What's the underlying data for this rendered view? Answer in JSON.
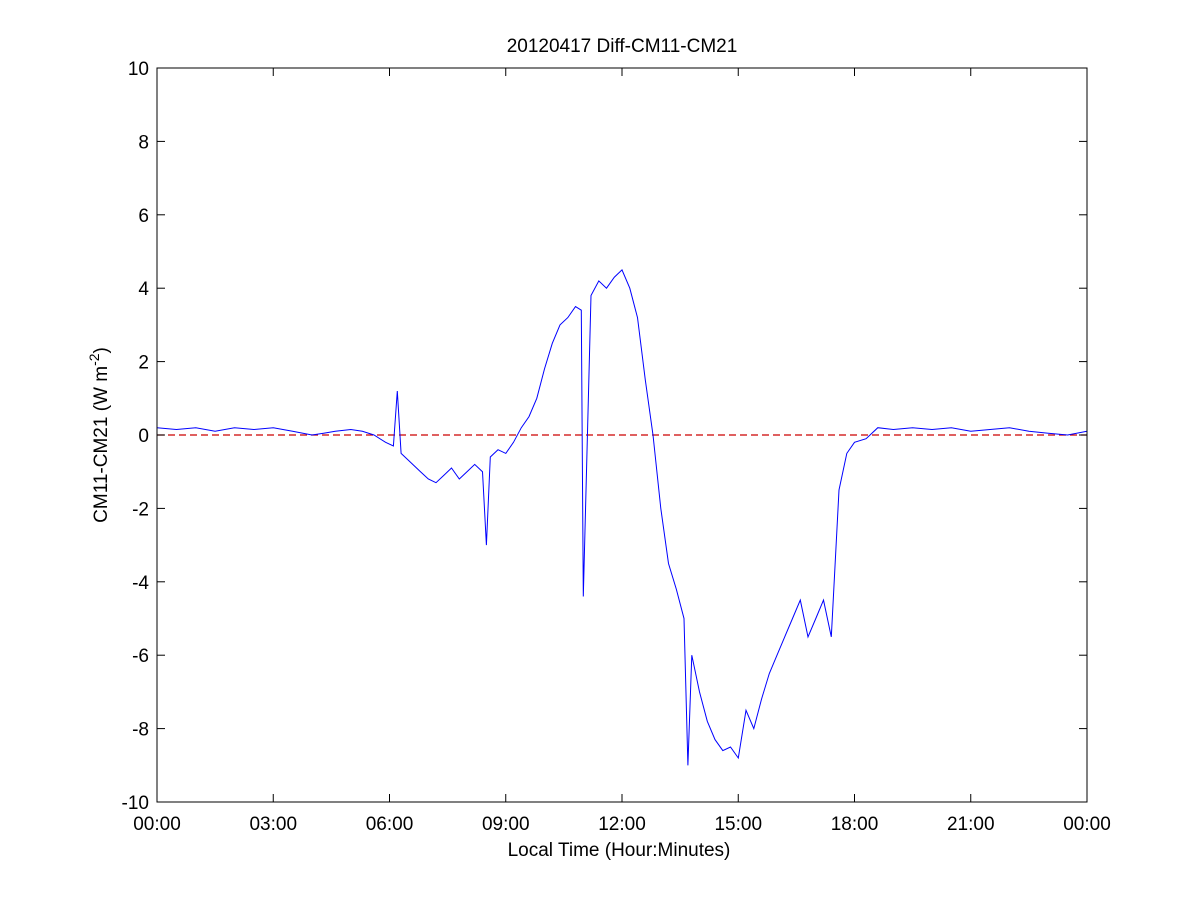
{
  "chart_data": {
    "type": "line",
    "title": "20120417 Diff-CM11-CM21",
    "xlabel": "Local Time (Hour:Minutes)",
    "ylabel": {
      "main": "CM11-CM21 (W m",
      "superscript": "-2",
      "close": ")"
    },
    "xlim": [
      0,
      24
    ],
    "ylim": [
      -10,
      10
    ],
    "x_ticks": [
      0,
      3,
      6,
      9,
      12,
      15,
      18,
      21,
      24
    ],
    "x_tick_labels": [
      "00:00",
      "03:00",
      "06:00",
      "09:00",
      "12:00",
      "15:00",
      "18:00",
      "21:00",
      "00:00"
    ],
    "y_ticks": [
      -10,
      -8,
      -6,
      -4,
      -2,
      0,
      2,
      4,
      6,
      8,
      10
    ],
    "y_tick_labels": [
      "-10",
      "-8",
      "-6",
      "-4",
      "-2",
      "0",
      "2",
      "4",
      "6",
      "8",
      "10"
    ],
    "grid": false,
    "colors": {
      "series": "#0000ff",
      "reference": "#cc0000",
      "axes": "#000000"
    },
    "reference_line": {
      "y": 0,
      "style": "dashed"
    },
    "series": [
      {
        "x": [
          0.0,
          0.5,
          1.0,
          1.5,
          2.0,
          2.5,
          3.0,
          3.5,
          4.0,
          4.3,
          4.6,
          5.0,
          5.3,
          5.6,
          5.9,
          6.1,
          6.2,
          6.3,
          6.5,
          6.8,
          7.0,
          7.2,
          7.4,
          7.6,
          7.8,
          8.0,
          8.2,
          8.4,
          8.5,
          8.6,
          8.8,
          9.0,
          9.2,
          9.4,
          9.6,
          9.8,
          10.0,
          10.2,
          10.4,
          10.6,
          10.8,
          10.95,
          11.0,
          11.2,
          11.4,
          11.6,
          11.8,
          12.0,
          12.2,
          12.4,
          12.6,
          12.8,
          13.0,
          13.2,
          13.4,
          13.6,
          13.7,
          13.8,
          14.0,
          14.2,
          14.4,
          14.6,
          14.8,
          15.0,
          15.2,
          15.4,
          15.6,
          15.8,
          16.0,
          16.2,
          16.4,
          16.6,
          16.8,
          17.0,
          17.2,
          17.4,
          17.6,
          17.8,
          18.0,
          18.3,
          18.6,
          19.0,
          19.5,
          20.0,
          20.5,
          21.0,
          21.5,
          22.0,
          22.5,
          23.0,
          23.5,
          24.0
        ],
        "y": [
          0.2,
          0.15,
          0.2,
          0.1,
          0.2,
          0.15,
          0.2,
          0.1,
          0.0,
          0.05,
          0.1,
          0.15,
          0.1,
          0.0,
          -0.2,
          -0.3,
          1.2,
          -0.5,
          -0.7,
          -1.0,
          -1.2,
          -1.3,
          -1.1,
          -0.9,
          -1.2,
          -1.0,
          -0.8,
          -1.0,
          -3.0,
          -0.6,
          -0.4,
          -0.5,
          -0.2,
          0.2,
          0.5,
          1.0,
          1.8,
          2.5,
          3.0,
          3.2,
          3.5,
          3.4,
          -4.4,
          3.8,
          4.2,
          4.0,
          4.3,
          4.5,
          4.0,
          3.2,
          1.5,
          0.0,
          -2.0,
          -3.5,
          -4.2,
          -5.0,
          -9.0,
          -6.0,
          -7.0,
          -7.8,
          -8.3,
          -8.6,
          -8.5,
          -8.8,
          -7.5,
          -8.0,
          -7.2,
          -6.5,
          -6.0,
          -5.5,
          -5.0,
          -4.5,
          -5.5,
          -5.0,
          -4.5,
          -5.5,
          -1.5,
          -0.5,
          -0.2,
          -0.1,
          0.2,
          0.15,
          0.2,
          0.15,
          0.2,
          0.1,
          0.15,
          0.2,
          0.1,
          0.05,
          0.0,
          0.1
        ]
      }
    ]
  }
}
